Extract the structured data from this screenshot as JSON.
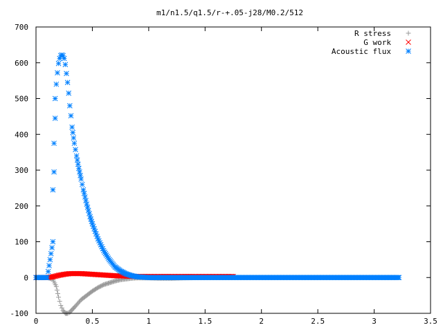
{
  "chart_data": {
    "type": "scatter",
    "title": "m1/n1.5/q1.5/r-+.05-j28/M0.2/512",
    "xlabel": "",
    "ylabel": "",
    "xlim": [
      0,
      3.5
    ],
    "ylim": [
      -100,
      700
    ],
    "x_ticks": [
      0,
      0.5,
      1,
      1.5,
      2,
      2.5,
      3,
      3.5
    ],
    "x_tick_labels": [
      "0",
      "0.5",
      "1",
      "1.5",
      "2",
      "2.5",
      "3",
      "3.5"
    ],
    "y_ticks": [
      -100,
      0,
      100,
      200,
      300,
      400,
      500,
      600,
      700
    ],
    "y_tick_labels": [
      "-100",
      "0",
      "100",
      "200",
      "300",
      "400",
      "500",
      "600",
      "700"
    ],
    "grid": false,
    "legend_position": "top-right",
    "series": [
      {
        "name": "R stress",
        "marker": "plus",
        "color": "#999999",
        "x": [
          0.0,
          0.05,
          0.1,
          0.15,
          0.18,
          0.2,
          0.22,
          0.24,
          0.26,
          0.28,
          0.3,
          0.32,
          0.35,
          0.4,
          0.45,
          0.5,
          0.55,
          0.6,
          0.65,
          0.7,
          0.75,
          0.8,
          0.85,
          0.9,
          1.0,
          1.1,
          1.2,
          1.3,
          1.5,
          1.75
        ],
        "y": [
          0,
          0,
          0,
          -5,
          -25,
          -55,
          -78,
          -92,
          -100,
          -100,
          -97,
          -90,
          -80,
          -62,
          -50,
          -38,
          -28,
          -20,
          -15,
          -10,
          -6,
          -4,
          -2,
          -1,
          -1,
          -2,
          -2,
          -1,
          0,
          0
        ]
      },
      {
        "name": "G work",
        "marker": "cross",
        "color": "#ff0000",
        "x": [
          0.0,
          0.05,
          0.1,
          0.15,
          0.2,
          0.25,
          0.3,
          0.35,
          0.4,
          0.45,
          0.5,
          0.55,
          0.6,
          0.7,
          0.8,
          0.9,
          1.0,
          1.1,
          1.2,
          1.3,
          1.4,
          1.5,
          1.6,
          1.75
        ],
        "y": [
          0,
          0,
          0,
          2,
          6,
          9,
          11,
          11,
          11,
          10,
          9,
          8,
          7,
          5,
          4,
          3,
          3,
          3,
          3,
          3,
          3,
          3,
          3,
          3
        ]
      },
      {
        "name": "Acoustic flux",
        "marker": "star",
        "color": "#0080ff",
        "x": [
          0.0,
          0.05,
          0.1,
          0.15,
          0.15,
          0.16,
          0.16,
          0.17,
          0.17,
          0.18,
          0.19,
          0.2,
          0.21,
          0.22,
          0.23,
          0.24,
          0.25,
          0.26,
          0.27,
          0.28,
          0.29,
          0.3,
          0.31,
          0.32,
          0.34,
          0.36,
          0.38,
          0.4,
          0.42,
          0.45,
          0.48,
          0.5,
          0.55,
          0.6,
          0.65,
          0.7,
          0.75,
          0.8,
          0.85,
          0.9,
          1.0,
          1.2,
          1.5,
          2.0,
          2.5,
          3.0,
          3.22
        ],
        "y": [
          0,
          0,
          0,
          100,
          245,
          295,
          375,
          445,
          500,
          540,
          572,
          598,
          612,
          620,
          622,
          620,
          612,
          595,
          570,
          545,
          515,
          480,
          452,
          420,
          375,
          340,
          305,
          275,
          245,
          205,
          170,
          150,
          108,
          75,
          50,
          30,
          18,
          10,
          5,
          2,
          0,
          0,
          0,
          0,
          0,
          0,
          0
        ]
      }
    ]
  }
}
